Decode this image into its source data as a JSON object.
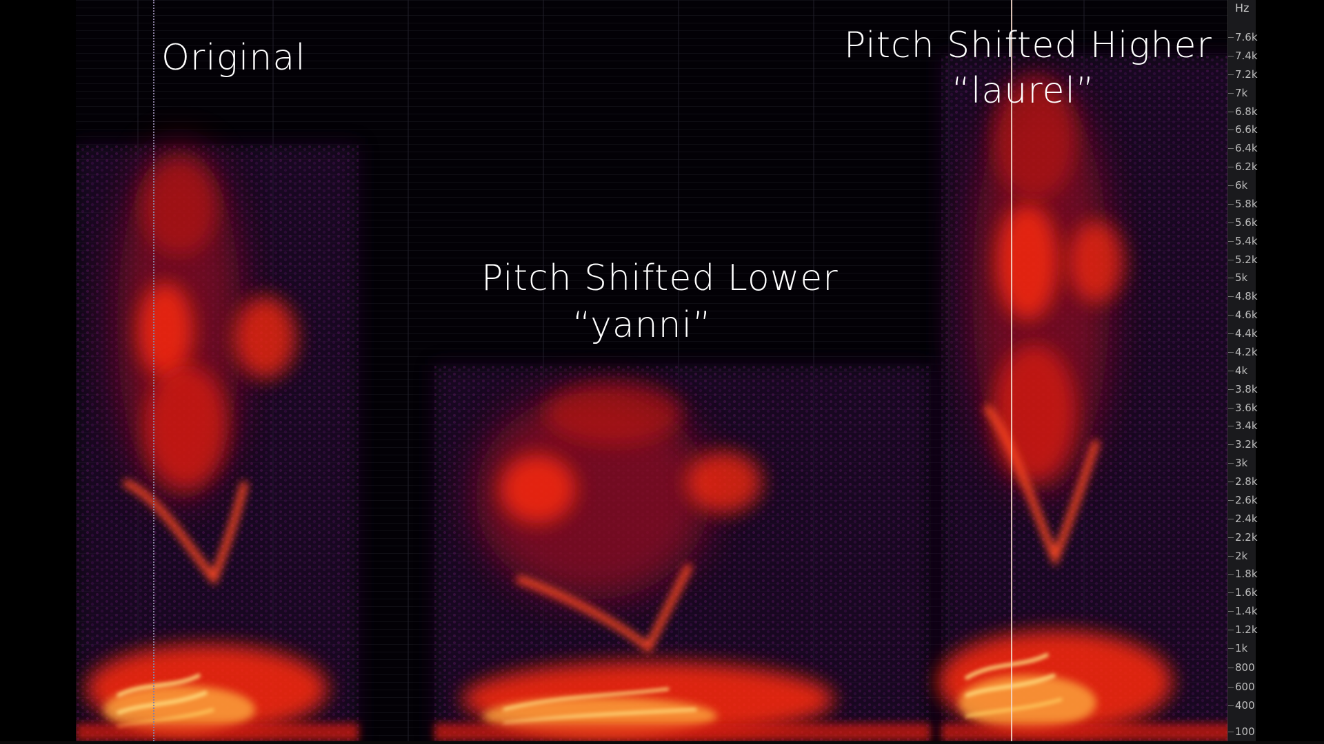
{
  "annotations": {
    "original": "Original",
    "lower_title": "Pitch Shifted Lower",
    "lower_word": "“yanni”",
    "higher_title": "Pitch Shifted Higher",
    "higher_word": "“laurel”"
  },
  "frequency_axis": {
    "unit": "Hz",
    "ticks": [
      {
        "value": 7600,
        "label": "7.6k"
      },
      {
        "value": 7400,
        "label": "7.4k"
      },
      {
        "value": 7200,
        "label": "7.2k"
      },
      {
        "value": 7000,
        "label": "7k"
      },
      {
        "value": 6800,
        "label": "6.8k"
      },
      {
        "value": 6600,
        "label": "6.6k"
      },
      {
        "value": 6400,
        "label": "6.4k"
      },
      {
        "value": 6200,
        "label": "6.2k"
      },
      {
        "value": 6000,
        "label": "6k"
      },
      {
        "value": 5800,
        "label": "5.8k"
      },
      {
        "value": 5600,
        "label": "5.6k"
      },
      {
        "value": 5400,
        "label": "5.4k"
      },
      {
        "value": 5200,
        "label": "5.2k"
      },
      {
        "value": 5000,
        "label": "5k"
      },
      {
        "value": 4800,
        "label": "4.8k"
      },
      {
        "value": 4600,
        "label": "4.6k"
      },
      {
        "value": 4400,
        "label": "4.4k"
      },
      {
        "value": 4200,
        "label": "4.2k"
      },
      {
        "value": 4000,
        "label": "4k"
      },
      {
        "value": 3800,
        "label": "3.8k"
      },
      {
        "value": 3600,
        "label": "3.6k"
      },
      {
        "value": 3400,
        "label": "3.4k"
      },
      {
        "value": 3200,
        "label": "3.2k"
      },
      {
        "value": 3000,
        "label": "3k"
      },
      {
        "value": 2800,
        "label": "2.8k"
      },
      {
        "value": 2600,
        "label": "2.6k"
      },
      {
        "value": 2400,
        "label": "2.4k"
      },
      {
        "value": 2200,
        "label": "2.2k"
      },
      {
        "value": 2000,
        "label": "2k"
      },
      {
        "value": 1800,
        "label": "1.8k"
      },
      {
        "value": 1600,
        "label": "1.6k"
      },
      {
        "value": 1400,
        "label": "1.4k"
      },
      {
        "value": 1200,
        "label": "1.2k"
      },
      {
        "value": 1000,
        "label": "1k"
      },
      {
        "value": 800,
        "label": "800"
      },
      {
        "value": 600,
        "label": "600"
      },
      {
        "value": 400,
        "label": "400"
      },
      {
        "value": 100,
        "label": "100"
      }
    ]
  },
  "colors": {
    "background": "#000000",
    "spectrogram_low": "#2a0a3a",
    "spectrogram_mid": "#c41414",
    "spectrogram_high": "#ff3a1a",
    "spectrogram_peak": "#ffd060",
    "playhead": "#f3d6c8",
    "text": "#ffffff"
  }
}
